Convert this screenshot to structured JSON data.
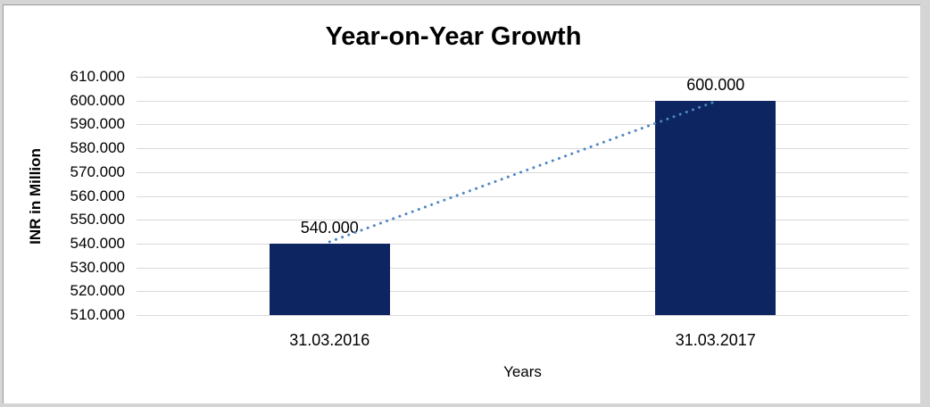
{
  "frame": {
    "background_color": "#d5d5d5",
    "chart_background": "#ffffff",
    "border_line_color": "#9b9b9b"
  },
  "chart_data": {
    "type": "bar",
    "title": "Year-on-Year Growth",
    "xlabel": "Years",
    "ylabel": "INR in Million",
    "categories": [
      "31.03.2016",
      "31.03.2017"
    ],
    "values": [
      540000,
      600000
    ],
    "value_labels": [
      "540.000",
      "600.000"
    ],
    "ylim": [
      510000,
      610000
    ],
    "yticks": [
      610000,
      600000,
      590000,
      580000,
      570000,
      560000,
      550000,
      540000,
      530000,
      520000,
      510000
    ],
    "ytick_labels": [
      "610.000",
      "600.000",
      "590.000",
      "580.000",
      "570.000",
      "560.000",
      "550.000",
      "540.000",
      "530.000",
      "520.000",
      "510.000"
    ],
    "grid": true,
    "legend": false,
    "bar_color": "#0d2560",
    "gridline_color": "#d9d9d9",
    "trendline": {
      "type": "linear",
      "style": "dotted",
      "color": "#4f86c6"
    }
  }
}
